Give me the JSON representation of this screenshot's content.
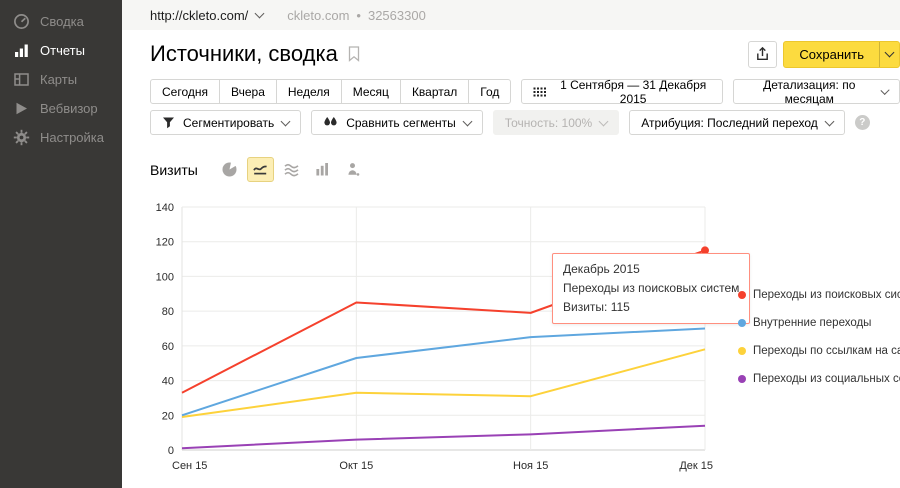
{
  "sidebar": {
    "items": [
      {
        "label": "Сводка",
        "icon": "speedometer-icon",
        "active": false
      },
      {
        "label": "Отчеты",
        "icon": "bar-chart-icon",
        "active": true
      },
      {
        "label": "Карты",
        "icon": "layout-icon",
        "active": false
      },
      {
        "label": "Вебвизор",
        "icon": "play-icon",
        "active": false
      },
      {
        "label": "Настройка",
        "icon": "gear-icon",
        "active": false
      }
    ]
  },
  "topbar": {
    "site_url": "http://ckleto.com/",
    "site_name": "ckleto.com",
    "separator": "•",
    "counter_id": "32563300"
  },
  "header": {
    "title": "Источники, сводка",
    "save_button": "Сохранить"
  },
  "period_tabs": [
    "Сегодня",
    "Вчера",
    "Неделя",
    "Месяц",
    "Квартал",
    "Год"
  ],
  "date_range": "1 Сентября — 31 Декабря 2015",
  "detalization": "Детализация: по месяцам",
  "filters": {
    "segment": "Сегментировать",
    "compare": "Сравнить сегменты",
    "accuracy": "Точность: 100%",
    "attribution": "Атрибуция: Последний переход"
  },
  "metric": {
    "label": "Визиты",
    "chart_type_icons": [
      "pie-chart-icon",
      "line-chart-icon",
      "stacked-area-icon",
      "columns-icon",
      "visitor-pin-icon"
    ],
    "selected_icon": "line-chart-icon"
  },
  "tooltip": {
    "period": "Декабрь 2015",
    "series": "Переходы из поисковых систем",
    "value_line": "Визиты: 115"
  },
  "colors": {
    "accent_yellow": "#fcdb3f",
    "sidebar_bg": "#393836",
    "tooltip_border": "#ff8f7f"
  },
  "chart_data": {
    "type": "line",
    "title": "Визиты",
    "x": [
      "Сен 15",
      "Окт 15",
      "Ноя 15",
      "Дек 15"
    ],
    "series": [
      {
        "name": "Переходы из поисковых систем",
        "color": "#f5412d",
        "values": [
          33,
          85,
          79,
          115
        ]
      },
      {
        "name": "Внутренние переходы",
        "color": "#5fa7df",
        "values": [
          20,
          53,
          65,
          70
        ]
      },
      {
        "name": "Переходы по ссылкам на сайтах",
        "color": "#fdd23b",
        "values": [
          19,
          33,
          31,
          58
        ]
      },
      {
        "name": "Переходы из социальных сетей",
        "color": "#9941b5",
        "values": [
          1,
          6,
          9,
          14
        ]
      }
    ],
    "ylim": [
      0,
      140
    ],
    "ytick_step": 20,
    "grid": true,
    "legend_position": "right",
    "highlight_marker": {
      "series_index": 0,
      "point_index": 3
    }
  }
}
